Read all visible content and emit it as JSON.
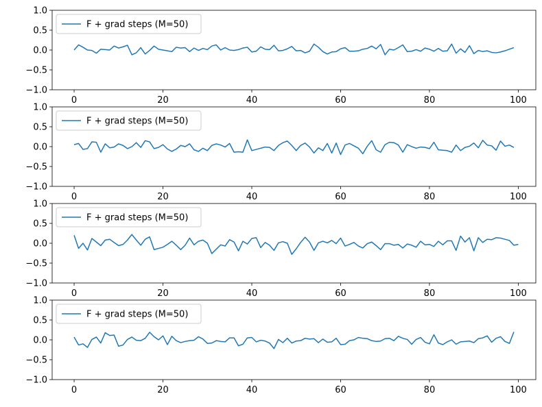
{
  "chart_data": [
    {
      "type": "line",
      "xlim": [
        -4.95,
        103.95
      ],
      "ylim": [
        -1.0,
        1.0
      ],
      "xticks": [
        0,
        20,
        40,
        60,
        80,
        100
      ],
      "yticks": [
        -1.0,
        -0.5,
        0.0,
        0.5,
        1.0
      ],
      "xtick_labels": [
        "0",
        "20",
        "40",
        "60",
        "80",
        "100"
      ],
      "ytick_labels": [
        "−1.0",
        "−0.5",
        "0.0",
        "0.5",
        "1.0"
      ],
      "legend": "upper-left",
      "grid": false,
      "series": [
        {
          "name": "F + grad steps (M=50)",
          "color": "#1f77b4",
          "values": [
            0.0,
            0.13,
            0.07,
            0.0,
            -0.01,
            -0.08,
            0.02,
            0.01,
            0.0,
            0.1,
            0.05,
            0.08,
            0.12,
            -0.12,
            -0.07,
            0.06,
            -0.1,
            -0.01,
            0.1,
            0.02,
            0.0,
            -0.02,
            -0.04,
            0.07,
            0.05,
            0.06,
            -0.04,
            0.05,
            -0.01,
            0.04,
            0.01,
            0.1,
            0.13,
            0.0,
            0.06,
            0.0,
            -0.01,
            0.01,
            0.05,
            0.07,
            -0.05,
            -0.03,
            0.08,
            0.02,
            0.01,
            0.12,
            -0.02,
            -0.01,
            0.03,
            0.09,
            -0.02,
            -0.01,
            -0.07,
            -0.03,
            0.15,
            0.07,
            -0.04,
            -0.1,
            -0.05,
            -0.04,
            0.03,
            0.06,
            -0.03,
            -0.03,
            -0.02,
            0.02,
            0.04,
            0.1,
            0.03,
            0.14,
            -0.12,
            0.02,
            0.0,
            0.06,
            0.13,
            -0.04,
            -0.03,
            0.01,
            -0.03,
            0.05,
            0.02,
            -0.03,
            0.04,
            -0.03,
            -0.02,
            0.15,
            -0.08,
            0.03,
            -0.06,
            0.11,
            -0.09,
            -0.01,
            -0.04,
            -0.02,
            -0.06,
            -0.07,
            -0.05,
            -0.02,
            0.02,
            0.06
          ]
        }
      ]
    },
    {
      "type": "line",
      "xlim": [
        -4.95,
        103.95
      ],
      "ylim": [
        -1.0,
        1.0
      ],
      "xticks": [
        0,
        20,
        40,
        60,
        80,
        100
      ],
      "yticks": [
        -1.0,
        -0.5,
        0.0,
        0.5,
        1.0
      ],
      "xtick_labels": [
        "0",
        "20",
        "40",
        "60",
        "80",
        "100"
      ],
      "ytick_labels": [
        "−1.0",
        "−0.5",
        "0.0",
        "0.5",
        "1.0"
      ],
      "legend": "upper-left",
      "grid": false,
      "series": [
        {
          "name": "F + grad steps (M=50)",
          "color": "#1f77b4",
          "values": [
            0.05,
            0.08,
            -0.07,
            -0.05,
            0.12,
            0.11,
            -0.14,
            0.07,
            -0.03,
            -0.01,
            0.07,
            0.03,
            -0.05,
            0.0,
            0.1,
            -0.02,
            0.15,
            0.12,
            -0.05,
            -0.02,
            0.05,
            -0.06,
            -0.12,
            -0.06,
            0.03,
            0.0,
            0.07,
            -0.08,
            -0.12,
            -0.04,
            -0.1,
            0.03,
            0.07,
            0.04,
            -0.01,
            0.08,
            -0.14,
            -0.13,
            -0.14,
            0.17,
            -0.1,
            -0.07,
            -0.04,
            -0.01,
            -0.02,
            -0.1,
            0.03,
            0.1,
            0.14,
            0.03,
            -0.1,
            0.03,
            0.09,
            -0.01,
            -0.16,
            -0.03,
            -0.1,
            0.08,
            -0.16,
            0.09,
            -0.2,
            0.04,
            0.08,
            0.02,
            -0.04,
            -0.18,
            0.01,
            0.15,
            -0.08,
            -0.14,
            0.05,
            0.11,
            0.1,
            0.04,
            -0.14,
            0.05,
            0.0,
            -0.04,
            -0.01,
            -0.02,
            -0.05,
            0.11,
            -0.08,
            -0.09,
            -0.1,
            -0.14,
            0.04,
            -0.1,
            -0.02,
            0.01,
            0.09,
            -0.03,
            0.16,
            0.04,
            0.02,
            -0.09,
            0.14,
            0.01,
            0.04,
            -0.02
          ]
        }
      ]
    },
    {
      "type": "line",
      "xlim": [
        -4.95,
        103.95
      ],
      "ylim": [
        -1.0,
        1.0
      ],
      "xticks": [
        0,
        20,
        40,
        60,
        80,
        100
      ],
      "yticks": [
        -1.0,
        -0.5,
        0.0,
        0.5,
        1.0
      ],
      "xtick_labels": [
        "0",
        "20",
        "40",
        "60",
        "80",
        "100"
      ],
      "ytick_labels": [
        "−1.0",
        "−0.5",
        "0.0",
        "0.5",
        "1.0"
      ],
      "legend": "upper-left",
      "grid": false,
      "series": [
        {
          "name": "F + grad steps (M=50)",
          "color": "#1f77b4",
          "values": [
            0.2,
            -0.13,
            0.0,
            -0.17,
            0.12,
            0.03,
            -0.06,
            0.08,
            0.1,
            0.02,
            -0.06,
            -0.03,
            0.08,
            0.22,
            0.08,
            -0.05,
            0.1,
            0.16,
            -0.16,
            -0.13,
            -0.1,
            -0.03,
            0.05,
            -0.05,
            -0.16,
            -0.05,
            0.13,
            -0.04,
            0.05,
            0.08,
            0.0,
            -0.26,
            -0.15,
            -0.04,
            -0.07,
            0.09,
            0.03,
            -0.19,
            0.05,
            -0.02,
            0.12,
            0.14,
            -0.11,
            0.02,
            -0.05,
            -0.18,
            0.01,
            0.04,
            0.0,
            -0.28,
            -0.14,
            0.02,
            0.15,
            0.03,
            -0.18,
            0.01,
            0.05,
            0.01,
            0.07,
            -0.01,
            0.13,
            -0.07,
            -0.03,
            0.02,
            -0.07,
            -0.12,
            -0.01,
            0.03,
            -0.06,
            -0.16,
            -0.01,
            -0.01,
            -0.05,
            -0.03,
            -0.12,
            -0.02,
            -0.05,
            -0.1,
            0.05,
            -0.04,
            -0.03,
            -0.08,
            0.05,
            -0.04,
            0.06,
            0.06,
            -0.18,
            0.18,
            0.03,
            0.14,
            -0.19,
            0.14,
            0.02,
            0.1,
            0.09,
            0.14,
            0.13,
            0.1,
            0.07,
            -0.05,
            -0.03
          ]
        }
      ]
    },
    {
      "type": "line",
      "xlim": [
        -4.95,
        103.95
      ],
      "ylim": [
        -1.0,
        1.0
      ],
      "xticks": [
        0,
        20,
        40,
        60,
        80,
        100
      ],
      "yticks": [
        -1.0,
        -0.5,
        0.0,
        0.5,
        1.0
      ],
      "xtick_labels": [
        "0",
        "20",
        "40",
        "60",
        "80",
        "100"
      ],
      "ytick_labels": [
        "−1.0",
        "−0.5",
        "0.0",
        "0.5",
        "1.0"
      ],
      "legend": "upper-left",
      "grid": false,
      "series": [
        {
          "name": "F + grad steps (M=50)",
          "color": "#1f77b4",
          "values": [
            0.07,
            -0.13,
            -0.1,
            -0.19,
            0.01,
            0.07,
            -0.08,
            0.18,
            0.11,
            0.12,
            -0.16,
            -0.13,
            0.01,
            0.07,
            -0.01,
            -0.02,
            0.04,
            0.19,
            0.08,
            0.0,
            0.1,
            -0.12,
            0.09,
            -0.02,
            -0.07,
            -0.04,
            -0.02,
            -0.01,
            0.08,
            0.02,
            -0.09,
            -0.08,
            -0.02,
            -0.04,
            -0.05,
            0.05,
            0.05,
            -0.15,
            -0.11,
            0.05,
            0.06,
            -0.05,
            -0.01,
            -0.03,
            -0.08,
            -0.22,
            0.01,
            -0.07,
            0.04,
            -0.08,
            -0.03,
            -0.02,
            0.04,
            0.02,
            0.03,
            -0.07,
            0.02,
            -0.06,
            -0.05,
            0.04,
            -0.12,
            -0.11,
            -0.02,
            0.0,
            0.06,
            0.04,
            0.03,
            -0.02,
            -0.04,
            -0.03,
            0.03,
            0.04,
            -0.02,
            0.09,
            0.04,
            0.01,
            -0.11,
            0.01,
            0.06,
            -0.06,
            -0.1,
            0.13,
            -0.08,
            -0.12,
            -0.05,
            0.0,
            -0.11,
            -0.05,
            -0.04,
            -0.03,
            -0.07,
            0.03,
            0.05,
            0.1,
            -0.06,
            0.04,
            0.08,
            -0.04,
            -0.09,
            0.2
          ]
        }
      ]
    }
  ]
}
